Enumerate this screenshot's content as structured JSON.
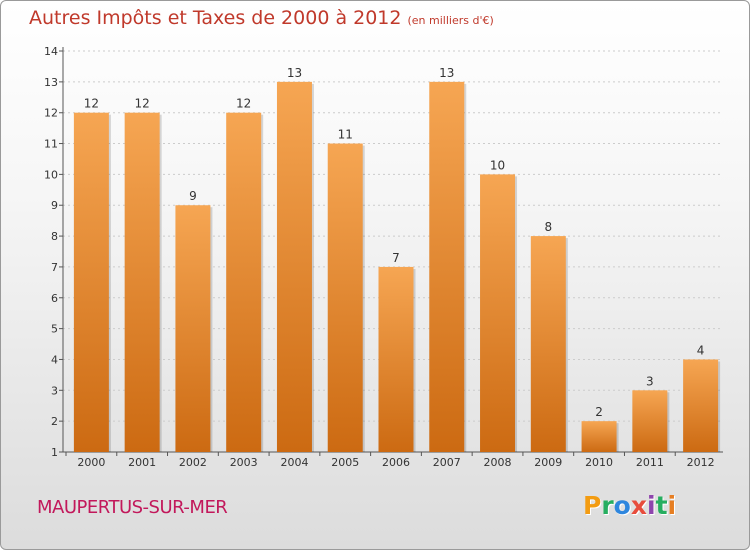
{
  "title": "Autres Impôts et Taxes de 2000 à 2012",
  "subtitle": "(en milliers d'€)",
  "commune": "MAUPERTUS-SUR-MER",
  "logo": {
    "letters": [
      "P",
      "r",
      "o",
      "x",
      "i",
      "t",
      "i"
    ],
    "colors": [
      "#f39c12",
      "#27ae60",
      "#2e86de",
      "#e74c3c",
      "#8e44ad",
      "#27ae60",
      "#e67e22"
    ]
  },
  "colors": {
    "bar_light": "#f6a653",
    "bar_dark": "#cc6a12",
    "title": "#c0392b",
    "commune": "#c2185b",
    "grid": "#cccccc"
  },
  "chart_data": {
    "type": "bar",
    "categories": [
      "2000",
      "2001",
      "2002",
      "2003",
      "2004",
      "2005",
      "2006",
      "2007",
      "2008",
      "2009",
      "2010",
      "2011",
      "2012"
    ],
    "values": [
      12,
      12,
      9,
      12,
      13,
      11,
      7,
      13,
      10,
      8,
      2,
      3,
      4
    ],
    "ylim": [
      1,
      14
    ],
    "yticks": [
      1,
      2,
      3,
      4,
      5,
      6,
      7,
      8,
      9,
      10,
      11,
      12,
      13,
      14
    ],
    "grid": true,
    "xlabel": "",
    "ylabel": ""
  }
}
